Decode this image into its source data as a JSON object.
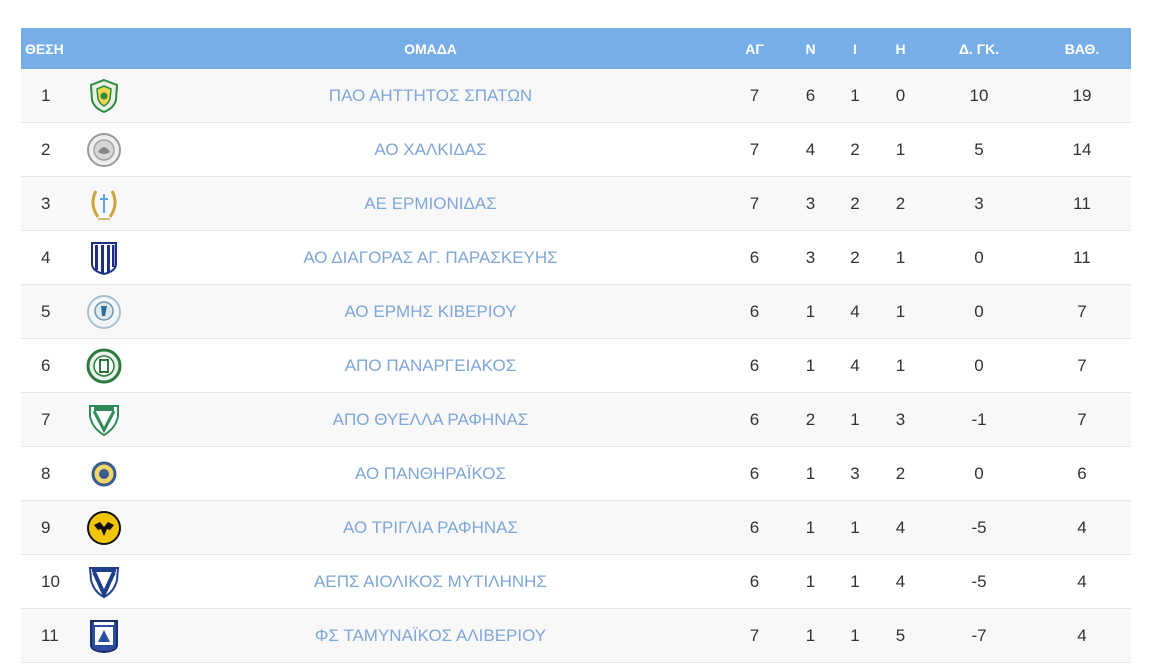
{
  "header": {
    "pos": "ΘΕΣΗ",
    "team": "ΟΜΑΔΑ",
    "played": "ΑΓ",
    "wins": "Ν",
    "draws": "Ι",
    "losses": "Η",
    "goal_diff": "Δ. ΓΚ.",
    "points": "ΒΑΘ."
  },
  "colors": {
    "header_bg": "#78aee8",
    "team_link": "#7fa6d8"
  },
  "rows": [
    {
      "pos": "1",
      "logo": "green-shield-crest-icon",
      "team": "ΠΑΟ ΑΗΤΤΗΤΟΣ ΣΠΑΤΩΝ",
      "played": "7",
      "wins": "6",
      "draws": "1",
      "losses": "0",
      "goal_diff": "10",
      "points": "19"
    },
    {
      "pos": "2",
      "logo": "grey-round-seal-icon",
      "team": "ΑΟ ΧΑΛΚΙΔΑΣ",
      "played": "7",
      "wins": "4",
      "draws": "2",
      "losses": "1",
      "goal_diff": "5",
      "points": "14"
    },
    {
      "pos": "3",
      "logo": "laurel-wreath-crest-icon",
      "team": "ΑΕ ΕΡΜΙΟΝΙΔΑΣ",
      "played": "7",
      "wins": "3",
      "draws": "2",
      "losses": "2",
      "goal_diff": "3",
      "points": "11"
    },
    {
      "pos": "4",
      "logo": "blue-striped-shield-icon",
      "team": "ΑΟ ΔΙΑΓΟΡΑΣ ΑΓ. ΠΑΡΑΣΚΕΥΗΣ",
      "played": "6",
      "wins": "3",
      "draws": "2",
      "losses": "1",
      "goal_diff": "0",
      "points": "11"
    },
    {
      "pos": "5",
      "logo": "light-blue-round-crest-icon",
      "team": "ΑΟ ΕΡΜΗΣ ΚΙΒΕΡΙΟΥ",
      "played": "6",
      "wins": "1",
      "draws": "4",
      "losses": "1",
      "goal_diff": "0",
      "points": "7"
    },
    {
      "pos": "6",
      "logo": "green-round-crest-icon",
      "team": "ΑΠΟ ΠΑΝΑΡΓΕΙΑΚΟΣ",
      "played": "6",
      "wins": "1",
      "draws": "4",
      "losses": "1",
      "goal_diff": "0",
      "points": "7"
    },
    {
      "pos": "7",
      "logo": "green-v-shield-icon",
      "team": "ΑΠΟ ΘΥΕΛΛΑ ΡΑΦΗΝΑΣ",
      "played": "6",
      "wins": "2",
      "draws": "1",
      "losses": "3",
      "goal_diff": "-1",
      "points": "7"
    },
    {
      "pos": "8",
      "logo": "small-blue-yellow-crest-icon",
      "team": "ΑΟ ΠΑΝΘΗΡΑΪΚΟΣ",
      "played": "6",
      "wins": "1",
      "draws": "3",
      "losses": "2",
      "goal_diff": "0",
      "points": "6"
    },
    {
      "pos": "9",
      "logo": "yellow-black-eagle-crest-icon",
      "team": "ΑΟ ΤΡΙΓΛΙΑ ΡΑΦΗΝΑΣ",
      "played": "6",
      "wins": "1",
      "draws": "1",
      "losses": "4",
      "goal_diff": "-5",
      "points": "4"
    },
    {
      "pos": "10",
      "logo": "blue-white-v-shield-icon",
      "team": "ΑΕΠΣ ΑΙΟΛΙΚΟΣ ΜΥΤΙΛΗΝΗΣ",
      "played": "6",
      "wins": "1",
      "draws": "1",
      "losses": "4",
      "goal_diff": "-5",
      "points": "4"
    },
    {
      "pos": "11",
      "logo": "blue-square-shield-icon",
      "team": "ΦΣ ΤΑΜΥΝΑΪΚΟΣ ΑΛΙΒΕΡΙΟΥ",
      "played": "7",
      "wins": "1",
      "draws": "1",
      "losses": "5",
      "goal_diff": "-7",
      "points": "4"
    }
  ]
}
